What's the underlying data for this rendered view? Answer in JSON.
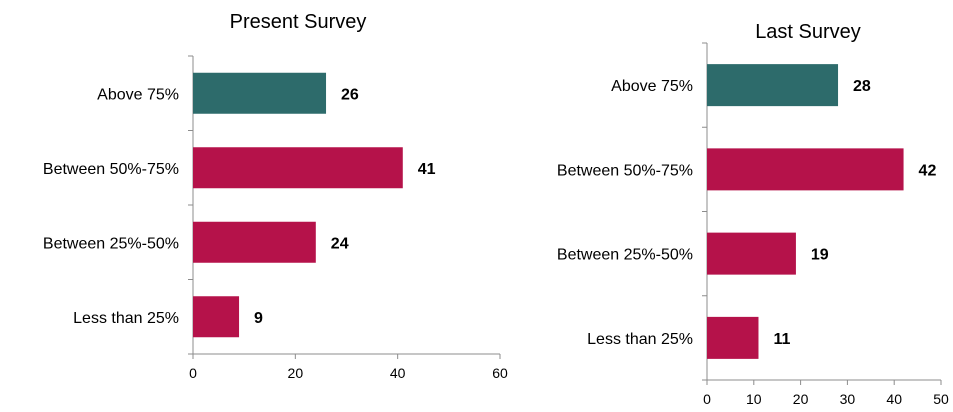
{
  "chart_data": [
    {
      "type": "bar",
      "orientation": "horizontal",
      "title": "Present Survey",
      "categories": [
        "Above 75%",
        "Between 50%-75%",
        "Between 25%-50%",
        "Less than 25%"
      ],
      "values": [
        26,
        41,
        24,
        9
      ],
      "bar_colors": [
        "#2d6b6b",
        "#b5124a",
        "#b5124a",
        "#b5124a"
      ],
      "xlim": [
        0,
        60
      ],
      "xticks": [
        0,
        20,
        40,
        60
      ],
      "grid": false,
      "data_labels": true
    },
    {
      "type": "bar",
      "orientation": "horizontal",
      "title": "Last Survey",
      "categories": [
        "Above 75%",
        "Between 50%-75%",
        "Between 25%-50%",
        "Less than 25%"
      ],
      "values": [
        28,
        42,
        19,
        11
      ],
      "bar_colors": [
        "#2d6b6b",
        "#b5124a",
        "#b5124a",
        "#b5124a"
      ],
      "xlim": [
        0,
        50
      ],
      "xticks": [
        0,
        10,
        20,
        30,
        40,
        50
      ],
      "grid": false,
      "data_labels": true
    }
  ]
}
